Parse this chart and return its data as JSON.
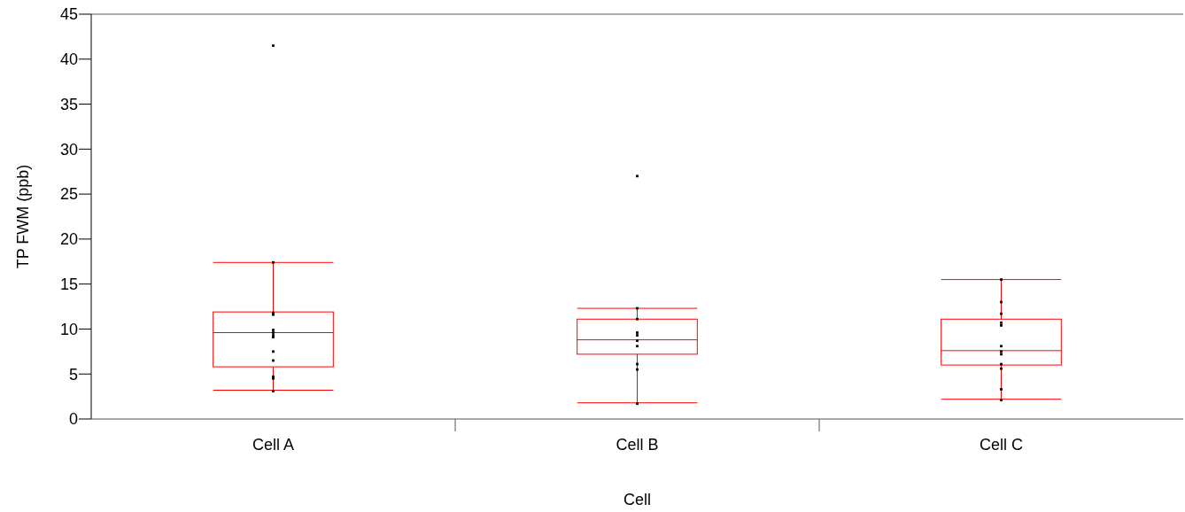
{
  "chart_data": {
    "type": "box",
    "xlabel": "Cell",
    "ylabel": "TP FWM (ppb)",
    "categories": [
      "Cell A",
      "Cell B",
      "Cell C"
    ],
    "ylim": [
      0,
      45
    ],
    "yticks": [
      0,
      5,
      10,
      15,
      20,
      25,
      30,
      35,
      40,
      45
    ],
    "grid": false,
    "series": [
      {
        "color": "#ff0000",
        "boxes": [
          {
            "low": 3.2,
            "q1": 5.8,
            "median": 9.6,
            "q3": 11.9,
            "high": 17.4
          },
          {
            "low": 1.8,
            "q1": 7.2,
            "median": 8.8,
            "q3": 11.1,
            "high": 12.3
          },
          {
            "low": 2.2,
            "q1": 6.0,
            "median": 7.6,
            "q3": 11.1,
            "high": 15.5
          }
        ]
      },
      {
        "type": "scatter",
        "color": "#000000",
        "marker": "square",
        "x": [
          "Cell A",
          "Cell A",
          "Cell A",
          "Cell A",
          "Cell A",
          "Cell A",
          "Cell A",
          "Cell A",
          "Cell A",
          "Cell A",
          "Cell A",
          "Cell A",
          "Cell A",
          "Cell B",
          "Cell B",
          "Cell B",
          "Cell B",
          "Cell B",
          "Cell B",
          "Cell B",
          "Cell B",
          "Cell B",
          "Cell B",
          "Cell C",
          "Cell C",
          "Cell C",
          "Cell C",
          "Cell C",
          "Cell C",
          "Cell C",
          "Cell C",
          "Cell C",
          "Cell C",
          "Cell C",
          "Cell C"
        ],
        "values": [
          41.5,
          17.4,
          11.8,
          11.6,
          9.9,
          9.6,
          9.3,
          9.1,
          7.5,
          6.5,
          4.7,
          4.5,
          3.1,
          27.0,
          12.3,
          11.1,
          9.6,
          9.3,
          8.7,
          8.1,
          6.1,
          5.5,
          1.7,
          15.5,
          13.0,
          11.7,
          10.7,
          10.4,
          8.1,
          7.5,
          7.2,
          6.1,
          5.6,
          3.3,
          2.1
        ]
      }
    ]
  }
}
